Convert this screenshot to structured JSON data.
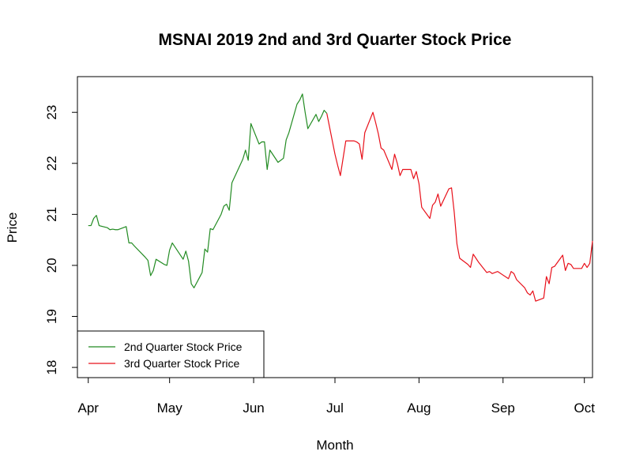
{
  "chart_data": {
    "type": "line",
    "title": "MSNAI 2019 2nd and 3rd Quarter Stock Price",
    "xlabel": "Month",
    "ylabel": "Price",
    "x_tick_labels": [
      "Apr",
      "May",
      "Jun",
      "Jul",
      "Aug",
      "Sep",
      "Oct"
    ],
    "x_ticks": [
      "2019-04-01",
      "2019-05-01",
      "2019-06-01",
      "2019-07-01",
      "2019-08-01",
      "2019-09-01",
      "2019-10-01"
    ],
    "y_ticks": [
      18,
      19,
      20,
      21,
      22,
      23
    ],
    "xlim": [
      "2019-03-28",
      "2019-10-04"
    ],
    "ylim": [
      17.8,
      23.7
    ],
    "grid": false,
    "legend_position": "bottom-left",
    "series": [
      {
        "name": "2nd Quarter Stock Price",
        "color": "#228B22",
        "points": [
          [
            "2019-04-01",
            20.78
          ],
          [
            "2019-04-02",
            20.78
          ],
          [
            "2019-04-03",
            20.92
          ],
          [
            "2019-04-04",
            20.98
          ],
          [
            "2019-04-05",
            20.78
          ],
          [
            "2019-04-08",
            20.74
          ],
          [
            "2019-04-09",
            20.7
          ],
          [
            "2019-04-10",
            20.71
          ],
          [
            "2019-04-11",
            20.7
          ],
          [
            "2019-04-12",
            20.7
          ],
          [
            "2019-04-15",
            20.76
          ],
          [
            "2019-04-16",
            20.44
          ],
          [
            "2019-04-17",
            20.44
          ],
          [
            "2019-04-18",
            20.38
          ],
          [
            "2019-04-22",
            20.16
          ],
          [
            "2019-04-23",
            20.1
          ],
          [
            "2019-04-24",
            19.8
          ],
          [
            "2019-04-25",
            19.9
          ],
          [
            "2019-04-26",
            20.12
          ],
          [
            "2019-04-29",
            20.02
          ],
          [
            "2019-04-30",
            20.0
          ],
          [
            "2019-05-01",
            20.3
          ],
          [
            "2019-05-02",
            20.44
          ],
          [
            "2019-05-03",
            20.36
          ],
          [
            "2019-05-06",
            20.12
          ],
          [
            "2019-05-07",
            20.28
          ],
          [
            "2019-05-08",
            20.08
          ],
          [
            "2019-05-09",
            19.64
          ],
          [
            "2019-05-10",
            19.56
          ],
          [
            "2019-05-13",
            19.86
          ],
          [
            "2019-05-14",
            20.32
          ],
          [
            "2019-05-15",
            20.26
          ],
          [
            "2019-05-16",
            20.72
          ],
          [
            "2019-05-17",
            20.7
          ],
          [
            "2019-05-20",
            21.0
          ],
          [
            "2019-05-21",
            21.16
          ],
          [
            "2019-05-22",
            21.2
          ],
          [
            "2019-05-23",
            21.08
          ],
          [
            "2019-05-24",
            21.62
          ],
          [
            "2019-05-28",
            22.08
          ],
          [
            "2019-05-29",
            22.26
          ],
          [
            "2019-05-30",
            22.06
          ],
          [
            "2019-05-31",
            22.78
          ],
          [
            "2019-06-03",
            22.38
          ],
          [
            "2019-06-04",
            22.42
          ],
          [
            "2019-06-05",
            22.42
          ],
          [
            "2019-06-06",
            21.88
          ],
          [
            "2019-06-07",
            22.26
          ],
          [
            "2019-06-10",
            22.02
          ],
          [
            "2019-06-11",
            22.06
          ],
          [
            "2019-06-12",
            22.1
          ],
          [
            "2019-06-13",
            22.46
          ],
          [
            "2019-06-14",
            22.6
          ],
          [
            "2019-06-17",
            23.16
          ],
          [
            "2019-06-18",
            23.24
          ],
          [
            "2019-06-19",
            23.36
          ],
          [
            "2019-06-20",
            23.0
          ],
          [
            "2019-06-21",
            22.68
          ],
          [
            "2019-06-24",
            22.96
          ],
          [
            "2019-06-25",
            22.82
          ],
          [
            "2019-06-26",
            22.92
          ],
          [
            "2019-06-27",
            23.04
          ],
          [
            "2019-06-28",
            22.98
          ]
        ]
      },
      {
        "name": "3rd Quarter Stock Price",
        "color": "#E8101A",
        "points": [
          [
            "2019-06-28",
            22.98
          ],
          [
            "2019-07-01",
            22.18
          ],
          [
            "2019-07-02",
            21.96
          ],
          [
            "2019-07-03",
            21.76
          ],
          [
            "2019-07-05",
            22.44
          ],
          [
            "2019-07-08",
            22.44
          ],
          [
            "2019-07-09",
            22.42
          ],
          [
            "2019-07-10",
            22.38
          ],
          [
            "2019-07-11",
            22.08
          ],
          [
            "2019-07-12",
            22.6
          ],
          [
            "2019-07-15",
            23.0
          ],
          [
            "2019-07-16",
            22.8
          ],
          [
            "2019-07-17",
            22.58
          ],
          [
            "2019-07-18",
            22.3
          ],
          [
            "2019-07-19",
            22.26
          ],
          [
            "2019-07-22",
            21.88
          ],
          [
            "2019-07-23",
            22.18
          ],
          [
            "2019-07-24",
            22.0
          ],
          [
            "2019-07-25",
            21.76
          ],
          [
            "2019-07-26",
            21.88
          ],
          [
            "2019-07-29",
            21.88
          ],
          [
            "2019-07-30",
            21.7
          ],
          [
            "2019-07-31",
            21.84
          ],
          [
            "2019-08-01",
            21.6
          ],
          [
            "2019-08-02",
            21.14
          ],
          [
            "2019-08-05",
            20.92
          ],
          [
            "2019-08-06",
            21.18
          ],
          [
            "2019-08-07",
            21.24
          ],
          [
            "2019-08-08",
            21.4
          ],
          [
            "2019-08-09",
            21.16
          ],
          [
            "2019-08-12",
            21.5
          ],
          [
            "2019-08-13",
            21.52
          ],
          [
            "2019-08-14",
            21.04
          ],
          [
            "2019-08-15",
            20.42
          ],
          [
            "2019-08-16",
            20.14
          ],
          [
            "2019-08-19",
            20.02
          ],
          [
            "2019-08-20",
            19.96
          ],
          [
            "2019-08-21",
            20.22
          ],
          [
            "2019-08-22",
            20.14
          ],
          [
            "2019-08-23",
            20.06
          ],
          [
            "2019-08-26",
            19.86
          ],
          [
            "2019-08-27",
            19.88
          ],
          [
            "2019-08-28",
            19.84
          ],
          [
            "2019-08-29",
            19.86
          ],
          [
            "2019-08-30",
            19.88
          ],
          [
            "2019-09-03",
            19.74
          ],
          [
            "2019-09-04",
            19.88
          ],
          [
            "2019-09-05",
            19.84
          ],
          [
            "2019-09-06",
            19.72
          ],
          [
            "2019-09-09",
            19.56
          ],
          [
            "2019-09-10",
            19.46
          ],
          [
            "2019-09-11",
            19.42
          ],
          [
            "2019-09-12",
            19.5
          ],
          [
            "2019-09-13",
            19.3
          ],
          [
            "2019-09-16",
            19.36
          ],
          [
            "2019-09-17",
            19.78
          ],
          [
            "2019-09-18",
            19.64
          ],
          [
            "2019-09-19",
            19.96
          ],
          [
            "2019-09-20",
            19.98
          ],
          [
            "2019-09-23",
            20.2
          ],
          [
            "2019-09-24",
            19.9
          ],
          [
            "2019-09-25",
            20.04
          ],
          [
            "2019-09-26",
            20.02
          ],
          [
            "2019-09-27",
            19.94
          ],
          [
            "2019-09-30",
            19.94
          ],
          [
            "2019-10-01",
            20.04
          ],
          [
            "2019-10-02",
            19.96
          ],
          [
            "2019-10-03",
            20.04
          ],
          [
            "2019-10-04",
            20.48
          ]
        ]
      }
    ]
  }
}
